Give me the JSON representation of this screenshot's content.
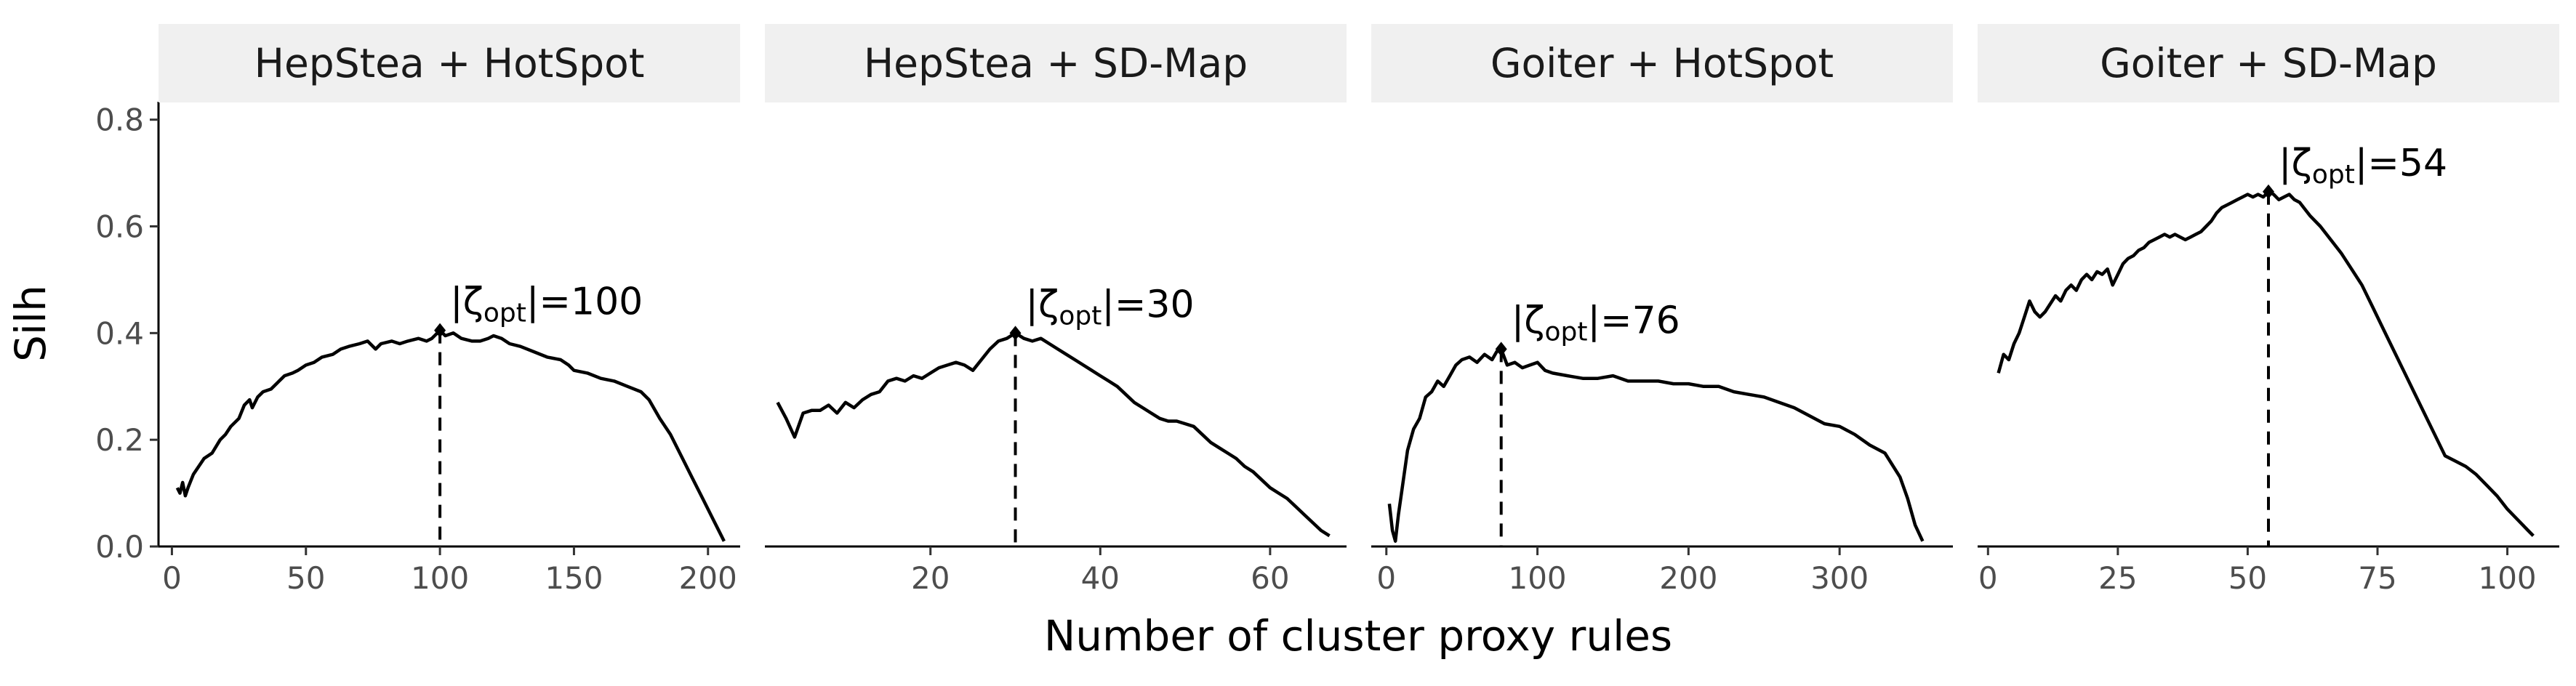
{
  "chart_data": {
    "type": "line",
    "layout": "facet-grid-1x4",
    "xlabel": "Number of cluster proxy rules",
    "ylabel": "Silh",
    "ylim": [
      0,
      0.82
    ],
    "y_ticks": [
      0.0,
      0.2,
      0.4,
      0.6,
      0.8
    ],
    "y_tick_labels": [
      "0.0",
      "0.2",
      "0.4",
      "0.6",
      "0.8"
    ],
    "grid": false,
    "line_color": "#000000",
    "strip_color": "#f0f0f0",
    "panels": [
      {
        "title": "HepStea + HotSpot",
        "xlim": [
          -5,
          212
        ],
        "x_ticks": [
          0,
          50,
          100,
          150,
          200
        ],
        "x_tick_labels": [
          "0",
          "50",
          "100",
          "150",
          "200"
        ],
        "optimum": {
          "x": 100,
          "y": 0.405,
          "label_prefix": "|ζ",
          "label_sub": "opt",
          "label_suffix": "|=100"
        },
        "points": [
          [
            2,
            0.11
          ],
          [
            3,
            0.1
          ],
          [
            4,
            0.12
          ],
          [
            5,
            0.095
          ],
          [
            6,
            0.11
          ],
          [
            8,
            0.135
          ],
          [
            10,
            0.15
          ],
          [
            12,
            0.165
          ],
          [
            15,
            0.175
          ],
          [
            18,
            0.2
          ],
          [
            20,
            0.21
          ],
          [
            22,
            0.225
          ],
          [
            25,
            0.24
          ],
          [
            27,
            0.265
          ],
          [
            29,
            0.275
          ],
          [
            30,
            0.26
          ],
          [
            32,
            0.28
          ],
          [
            34,
            0.29
          ],
          [
            37,
            0.295
          ],
          [
            40,
            0.31
          ],
          [
            42,
            0.32
          ],
          [
            45,
            0.325
          ],
          [
            47,
            0.33
          ],
          [
            50,
            0.34
          ],
          [
            53,
            0.345
          ],
          [
            56,
            0.355
          ],
          [
            60,
            0.36
          ],
          [
            63,
            0.37
          ],
          [
            66,
            0.375
          ],
          [
            70,
            0.38
          ],
          [
            73,
            0.385
          ],
          [
            76,
            0.37
          ],
          [
            78,
            0.38
          ],
          [
            82,
            0.385
          ],
          [
            85,
            0.38
          ],
          [
            88,
            0.385
          ],
          [
            92,
            0.39
          ],
          [
            95,
            0.385
          ],
          [
            97,
            0.39
          ],
          [
            100,
            0.405
          ],
          [
            102,
            0.395
          ],
          [
            105,
            0.4
          ],
          [
            108,
            0.39
          ],
          [
            112,
            0.385
          ],
          [
            115,
            0.385
          ],
          [
            118,
            0.39
          ],
          [
            120,
            0.395
          ],
          [
            123,
            0.39
          ],
          [
            126,
            0.38
          ],
          [
            130,
            0.375
          ],
          [
            135,
            0.365
          ],
          [
            140,
            0.355
          ],
          [
            145,
            0.35
          ],
          [
            148,
            0.34
          ],
          [
            150,
            0.33
          ],
          [
            155,
            0.325
          ],
          [
            160,
            0.315
          ],
          [
            165,
            0.31
          ],
          [
            170,
            0.3
          ],
          [
            175,
            0.29
          ],
          [
            178,
            0.275
          ],
          [
            182,
            0.24
          ],
          [
            186,
            0.21
          ],
          [
            190,
            0.17
          ],
          [
            194,
            0.13
          ],
          [
            198,
            0.09
          ],
          [
            202,
            0.05
          ],
          [
            205,
            0.02
          ],
          [
            206,
            0.01
          ]
        ]
      },
      {
        "title": "HepStea + SD-Map",
        "xlim": [
          0.5,
          69
        ],
        "x_ticks": [
          20,
          40,
          60
        ],
        "x_tick_labels": [
          "20",
          "40",
          "60"
        ],
        "optimum": {
          "x": 30,
          "y": 0.4,
          "label_prefix": "|ζ",
          "label_sub": "opt",
          "label_suffix": "|=30"
        },
        "points": [
          [
            2,
            0.27
          ],
          [
            3,
            0.24
          ],
          [
            4,
            0.205
          ],
          [
            5,
            0.25
          ],
          [
            6,
            0.255
          ],
          [
            7,
            0.255
          ],
          [
            8,
            0.265
          ],
          [
            9,
            0.25
          ],
          [
            10,
            0.27
          ],
          [
            11,
            0.26
          ],
          [
            12,
            0.275
          ],
          [
            13,
            0.285
          ],
          [
            14,
            0.29
          ],
          [
            15,
            0.31
          ],
          [
            16,
            0.315
          ],
          [
            17,
            0.31
          ],
          [
            18,
            0.32
          ],
          [
            19,
            0.315
          ],
          [
            20,
            0.325
          ],
          [
            21,
            0.335
          ],
          [
            22,
            0.34
          ],
          [
            23,
            0.345
          ],
          [
            24,
            0.34
          ],
          [
            25,
            0.33
          ],
          [
            26,
            0.35
          ],
          [
            27,
            0.37
          ],
          [
            28,
            0.385
          ],
          [
            29,
            0.39
          ],
          [
            30,
            0.4
          ],
          [
            31,
            0.39
          ],
          [
            32,
            0.385
          ],
          [
            33,
            0.39
          ],
          [
            34,
            0.38
          ],
          [
            35,
            0.37
          ],
          [
            36,
            0.36
          ],
          [
            37,
            0.35
          ],
          [
            38,
            0.34
          ],
          [
            39,
            0.33
          ],
          [
            40,
            0.32
          ],
          [
            41,
            0.31
          ],
          [
            42,
            0.3
          ],
          [
            43,
            0.285
          ],
          [
            44,
            0.27
          ],
          [
            45,
            0.26
          ],
          [
            46,
            0.25
          ],
          [
            47,
            0.24
          ],
          [
            48,
            0.235
          ],
          [
            49,
            0.235
          ],
          [
            50,
            0.23
          ],
          [
            51,
            0.225
          ],
          [
            52,
            0.21
          ],
          [
            53,
            0.195
          ],
          [
            54,
            0.185
          ],
          [
            55,
            0.175
          ],
          [
            56,
            0.165
          ],
          [
            57,
            0.15
          ],
          [
            58,
            0.14
          ],
          [
            59,
            0.125
          ],
          [
            60,
            0.11
          ],
          [
            61,
            0.1
          ],
          [
            62,
            0.09
          ],
          [
            63,
            0.075
          ],
          [
            64,
            0.06
          ],
          [
            65,
            0.045
          ],
          [
            66,
            0.03
          ],
          [
            67,
            0.02
          ]
        ]
      },
      {
        "title": "Goiter + HotSpot",
        "xlim": [
          -10,
          375
        ],
        "x_ticks": [
          0,
          100,
          200,
          300
        ],
        "x_tick_labels": [
          "0",
          "100",
          "200",
          "300"
        ],
        "optimum": {
          "x": 76,
          "y": 0.37,
          "label_prefix": "|ζ",
          "label_sub": "opt",
          "label_suffix": "|=76"
        },
        "points": [
          [
            2,
            0.08
          ],
          [
            4,
            0.03
          ],
          [
            6,
            0.01
          ],
          [
            8,
            0.06
          ],
          [
            10,
            0.1
          ],
          [
            14,
            0.18
          ],
          [
            18,
            0.22
          ],
          [
            22,
            0.24
          ],
          [
            26,
            0.28
          ],
          [
            30,
            0.29
          ],
          [
            34,
            0.31
          ],
          [
            38,
            0.3
          ],
          [
            42,
            0.32
          ],
          [
            46,
            0.34
          ],
          [
            50,
            0.35
          ],
          [
            55,
            0.355
          ],
          [
            60,
            0.345
          ],
          [
            65,
            0.36
          ],
          [
            70,
            0.35
          ],
          [
            73,
            0.365
          ],
          [
            76,
            0.37
          ],
          [
            80,
            0.34
          ],
          [
            85,
            0.345
          ],
          [
            90,
            0.335
          ],
          [
            95,
            0.34
          ],
          [
            100,
            0.345
          ],
          [
            105,
            0.33
          ],
          [
            110,
            0.325
          ],
          [
            120,
            0.32
          ],
          [
            130,
            0.315
          ],
          [
            140,
            0.315
          ],
          [
            150,
            0.32
          ],
          [
            160,
            0.31
          ],
          [
            170,
            0.31
          ],
          [
            180,
            0.31
          ],
          [
            190,
            0.305
          ],
          [
            200,
            0.305
          ],
          [
            210,
            0.3
          ],
          [
            220,
            0.3
          ],
          [
            230,
            0.29
          ],
          [
            240,
            0.285
          ],
          [
            250,
            0.28
          ],
          [
            260,
            0.27
          ],
          [
            270,
            0.26
          ],
          [
            280,
            0.245
          ],
          [
            290,
            0.23
          ],
          [
            300,
            0.225
          ],
          [
            310,
            0.21
          ],
          [
            320,
            0.19
          ],
          [
            330,
            0.175
          ],
          [
            340,
            0.13
          ],
          [
            345,
            0.09
          ],
          [
            350,
            0.04
          ],
          [
            355,
            0.01
          ]
        ]
      },
      {
        "title": "Goiter + SD-Map",
        "xlim": [
          -2,
          110
        ],
        "x_ticks": [
          0,
          25,
          50,
          75,
          100
        ],
        "x_tick_labels": [
          "0",
          "25",
          "50",
          "75",
          "100"
        ],
        "optimum": {
          "x": 54,
          "y": 0.665,
          "label_prefix": "|ζ",
          "label_sub": "opt",
          "label_suffix": "|=54"
        },
        "points": [
          [
            2,
            0.325
          ],
          [
            3,
            0.36
          ],
          [
            4,
            0.35
          ],
          [
            5,
            0.38
          ],
          [
            6,
            0.4
          ],
          [
            7,
            0.43
          ],
          [
            8,
            0.46
          ],
          [
            9,
            0.44
          ],
          [
            10,
            0.43
          ],
          [
            11,
            0.44
          ],
          [
            12,
            0.455
          ],
          [
            13,
            0.47
          ],
          [
            14,
            0.46
          ],
          [
            15,
            0.48
          ],
          [
            16,
            0.49
          ],
          [
            17,
            0.48
          ],
          [
            18,
            0.5
          ],
          [
            19,
            0.51
          ],
          [
            20,
            0.5
          ],
          [
            21,
            0.515
          ],
          [
            22,
            0.51
          ],
          [
            23,
            0.52
          ],
          [
            24,
            0.49
          ],
          [
            25,
            0.51
          ],
          [
            26,
            0.53
          ],
          [
            27,
            0.54
          ],
          [
            28,
            0.545
          ],
          [
            29,
            0.555
          ],
          [
            30,
            0.56
          ],
          [
            31,
            0.57
          ],
          [
            32,
            0.575
          ],
          [
            33,
            0.58
          ],
          [
            34,
            0.585
          ],
          [
            35,
            0.58
          ],
          [
            36,
            0.585
          ],
          [
            37,
            0.58
          ],
          [
            38,
            0.575
          ],
          [
            39,
            0.58
          ],
          [
            40,
            0.585
          ],
          [
            41,
            0.59
          ],
          [
            42,
            0.6
          ],
          [
            43,
            0.61
          ],
          [
            44,
            0.625
          ],
          [
            45,
            0.635
          ],
          [
            46,
            0.64
          ],
          [
            47,
            0.645
          ],
          [
            48,
            0.65
          ],
          [
            49,
            0.655
          ],
          [
            50,
            0.66
          ],
          [
            51,
            0.655
          ],
          [
            52,
            0.66
          ],
          [
            53,
            0.655
          ],
          [
            54,
            0.665
          ],
          [
            55,
            0.66
          ],
          [
            56,
            0.65
          ],
          [
            57,
            0.655
          ],
          [
            58,
            0.66
          ],
          [
            59,
            0.65
          ],
          [
            60,
            0.645
          ],
          [
            62,
            0.62
          ],
          [
            64,
            0.6
          ],
          [
            66,
            0.575
          ],
          [
            68,
            0.55
          ],
          [
            70,
            0.52
          ],
          [
            72,
            0.49
          ],
          [
            74,
            0.45
          ],
          [
            76,
            0.41
          ],
          [
            78,
            0.37
          ],
          [
            80,
            0.33
          ],
          [
            82,
            0.29
          ],
          [
            84,
            0.25
          ],
          [
            86,
            0.21
          ],
          [
            88,
            0.17
          ],
          [
            90,
            0.16
          ],
          [
            92,
            0.15
          ],
          [
            94,
            0.135
          ],
          [
            96,
            0.115
          ],
          [
            98,
            0.095
          ],
          [
            100,
            0.07
          ],
          [
            102,
            0.05
          ],
          [
            104,
            0.03
          ],
          [
            105,
            0.02
          ]
        ]
      }
    ]
  }
}
